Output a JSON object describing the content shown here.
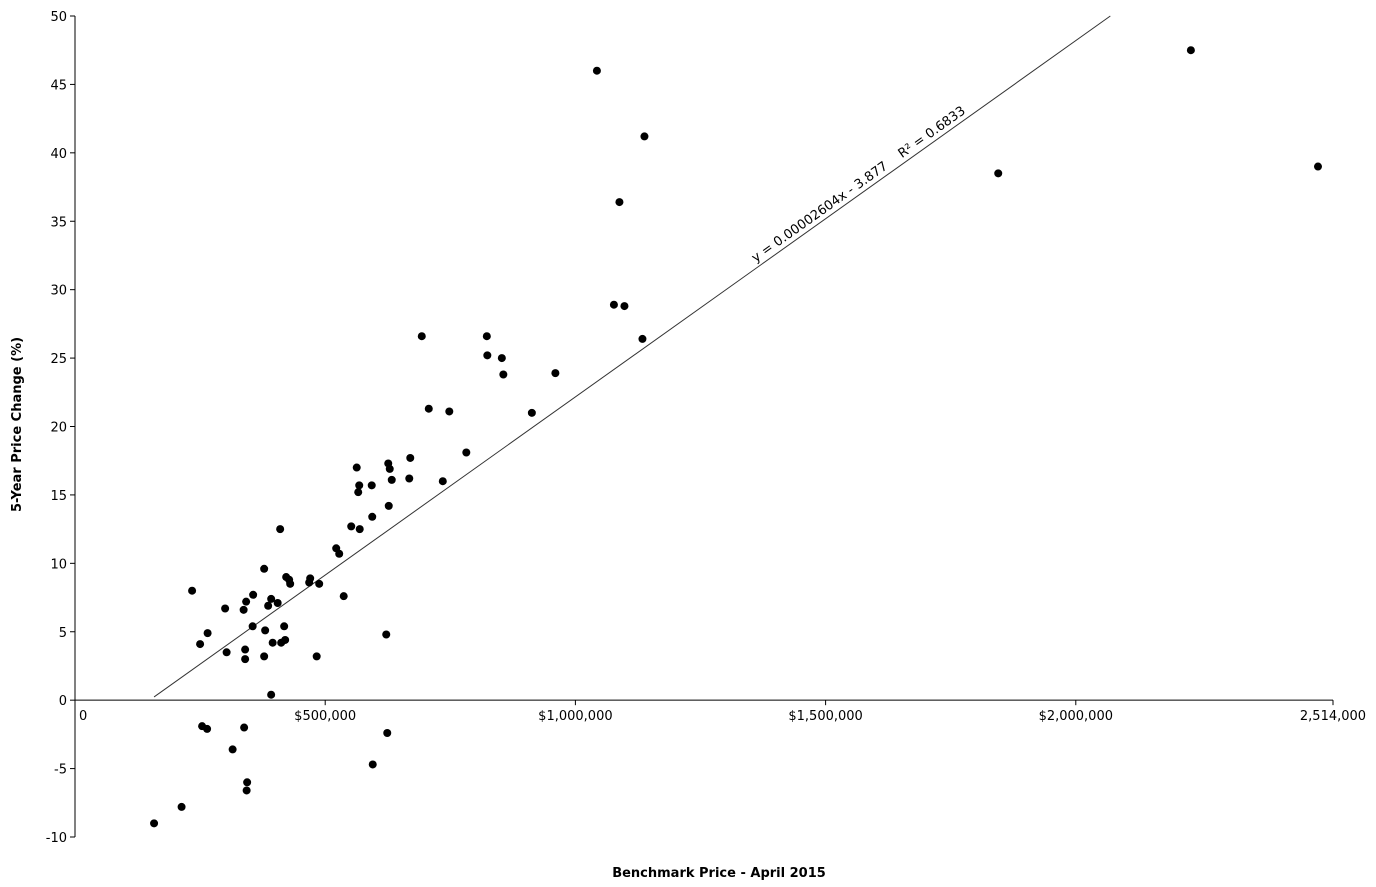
{
  "chart_data": {
    "type": "scatter",
    "title": "",
    "xlabel": "Benchmark Price - April 2015",
    "ylabel": "5-Year Price Change (%)",
    "xlim": [
      0,
      2514000
    ],
    "ylim": [
      -10,
      50
    ],
    "x_ticks": [
      0,
      500000,
      1000000,
      1500000,
      2000000,
      2514000
    ],
    "x_tick_labels": [
      "0",
      "$500,000",
      "$1,000,000",
      "$1,500,000",
      "$2,000,000",
      "2,514,000"
    ],
    "y_ticks": [
      -10,
      -5,
      0,
      5,
      10,
      15,
      20,
      25,
      30,
      35,
      40,
      45,
      50
    ],
    "y_tick_labels": [
      "-10",
      "-5",
      "0",
      "5",
      "10",
      "15",
      "20",
      "25",
      "30",
      "35",
      "40",
      "45",
      "50"
    ],
    "grid": false,
    "legend": "none",
    "trendline": {
      "slope": 2.604e-05,
      "intercept": -3.877,
      "x_range": [
        158000,
        2514000
      ],
      "equation": "y = 0.00002604x - 3.877",
      "r2_label": "R² = 0.6833"
    },
    "points": [
      {
        "x": 158000,
        "y": -9.0
      },
      {
        "x": 213000,
        "y": -7.8
      },
      {
        "x": 234000,
        "y": 8.0
      },
      {
        "x": 250000,
        "y": 4.1
      },
      {
        "x": 254000,
        "y": -1.9
      },
      {
        "x": 264000,
        "y": -2.1
      },
      {
        "x": 265000,
        "y": 4.9
      },
      {
        "x": 300000,
        "y": 6.7
      },
      {
        "x": 303000,
        "y": 3.5
      },
      {
        "x": 315000,
        "y": -3.6
      },
      {
        "x": 337000,
        "y": 6.6
      },
      {
        "x": 338000,
        "y": -2.0
      },
      {
        "x": 340000,
        "y": 3.0
      },
      {
        "x": 340000,
        "y": 3.7
      },
      {
        "x": 342000,
        "y": 7.2
      },
      {
        "x": 343000,
        "y": -6.6
      },
      {
        "x": 344000,
        "y": -6.0
      },
      {
        "x": 355000,
        "y": 5.4
      },
      {
        "x": 356000,
        "y": 7.7
      },
      {
        "x": 378000,
        "y": 9.6
      },
      {
        "x": 378000,
        "y": 3.2
      },
      {
        "x": 380000,
        "y": 5.1
      },
      {
        "x": 386000,
        "y": 6.9
      },
      {
        "x": 392000,
        "y": 7.4
      },
      {
        "x": 392000,
        "y": 0.4
      },
      {
        "x": 395000,
        "y": 4.2
      },
      {
        "x": 405000,
        "y": 7.1
      },
      {
        "x": 410000,
        "y": 12.5
      },
      {
        "x": 412000,
        "y": 4.2
      },
      {
        "x": 418000,
        "y": 5.4
      },
      {
        "x": 420000,
        "y": 4.4
      },
      {
        "x": 422000,
        "y": 9.0
      },
      {
        "x": 428000,
        "y": 8.8
      },
      {
        "x": 430000,
        "y": 8.5
      },
      {
        "x": 468000,
        "y": 8.6
      },
      {
        "x": 470000,
        "y": 8.9
      },
      {
        "x": 483000,
        "y": 3.2
      },
      {
        "x": 488000,
        "y": 8.5
      },
      {
        "x": 522000,
        "y": 11.1
      },
      {
        "x": 528000,
        "y": 10.7
      },
      {
        "x": 537000,
        "y": 7.6
      },
      {
        "x": 552000,
        "y": 12.7
      },
      {
        "x": 563000,
        "y": 17.0
      },
      {
        "x": 566000,
        "y": 15.2
      },
      {
        "x": 568000,
        "y": 15.7
      },
      {
        "x": 569000,
        "y": 12.5
      },
      {
        "x": 593000,
        "y": 15.7
      },
      {
        "x": 594000,
        "y": 13.4
      },
      {
        "x": 595000,
        "y": -4.7
      },
      {
        "x": 622000,
        "y": 4.8
      },
      {
        "x": 624000,
        "y": -2.4
      },
      {
        "x": 626000,
        "y": 17.3
      },
      {
        "x": 627000,
        "y": 14.2
      },
      {
        "x": 629000,
        "y": 16.9
      },
      {
        "x": 633000,
        "y": 16.1
      },
      {
        "x": 668000,
        "y": 16.2
      },
      {
        "x": 670000,
        "y": 17.7
      },
      {
        "x": 693000,
        "y": 26.6
      },
      {
        "x": 707000,
        "y": 21.3
      },
      {
        "x": 735000,
        "y": 16.0
      },
      {
        "x": 748000,
        "y": 21.1
      },
      {
        "x": 782000,
        "y": 18.1
      },
      {
        "x": 823000,
        "y": 26.6
      },
      {
        "x": 824000,
        "y": 25.2
      },
      {
        "x": 853000,
        "y": 25.0
      },
      {
        "x": 856000,
        "y": 23.8
      },
      {
        "x": 913000,
        "y": 21.0
      },
      {
        "x": 960000,
        "y": 23.9
      },
      {
        "x": 1043000,
        "y": 46.0
      },
      {
        "x": 1077000,
        "y": 28.9
      },
      {
        "x": 1088000,
        "y": 36.4
      },
      {
        "x": 1098000,
        "y": 28.8
      },
      {
        "x": 1134000,
        "y": 26.4
      },
      {
        "x": 1138000,
        "y": 41.2
      },
      {
        "x": 1845000,
        "y": 38.5
      },
      {
        "x": 2230000,
        "y": 47.5
      },
      {
        "x": 2484000,
        "y": 39.0
      }
    ]
  }
}
